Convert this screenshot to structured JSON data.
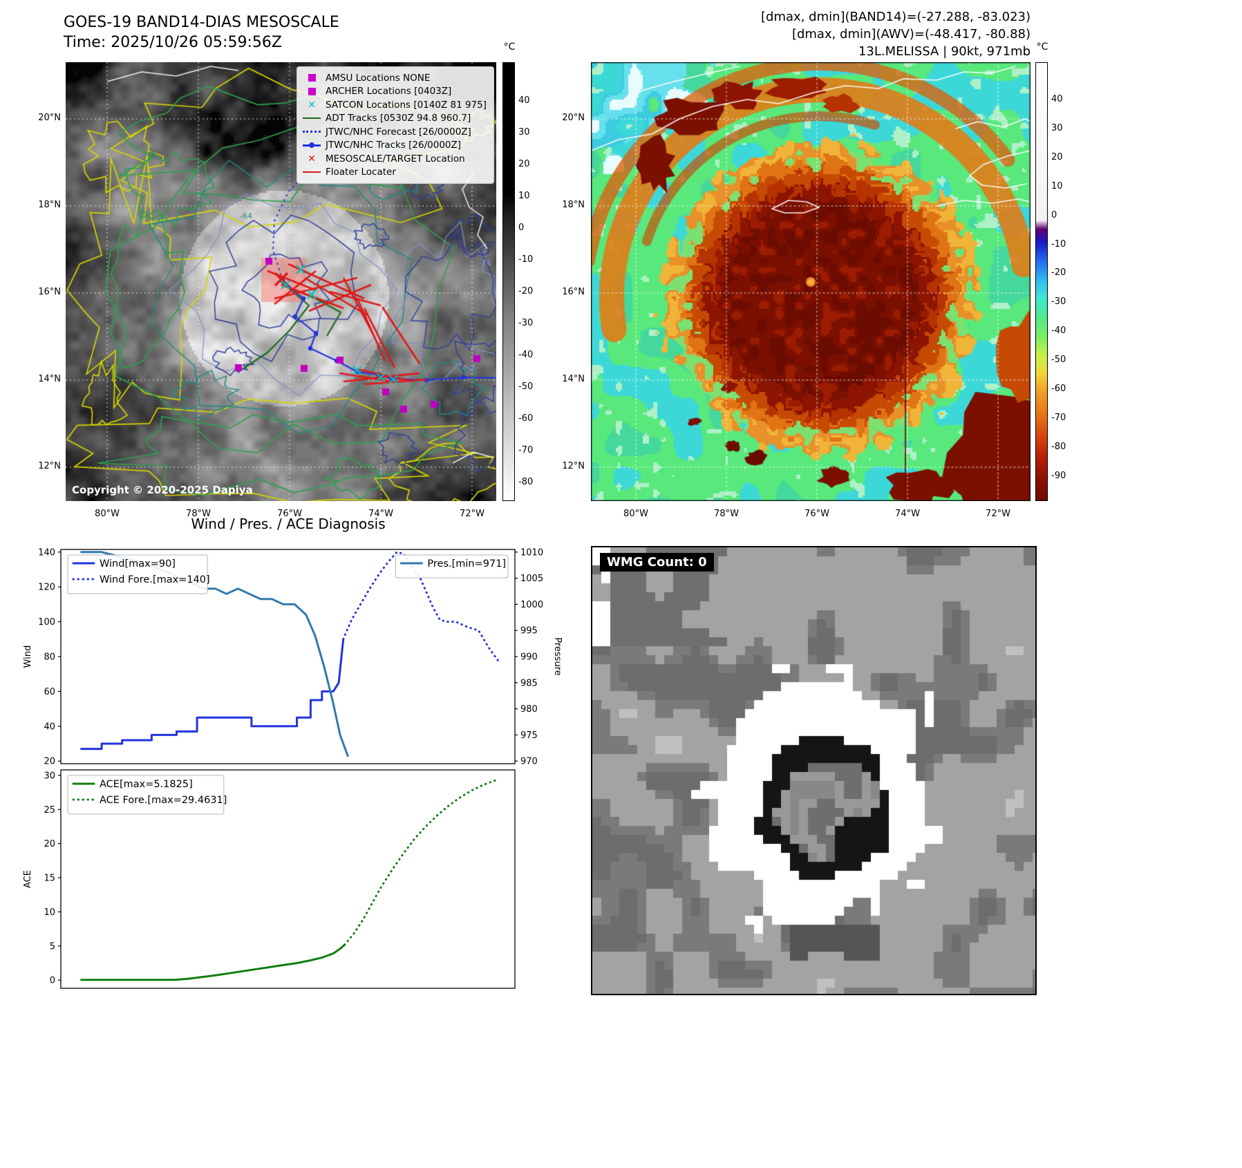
{
  "top_left": {
    "title": "GOES-19 BAND14-DIAS MESOSCALE",
    "subtitle": "Time: 2025/10/26 05:59:56Z",
    "copyright": "Copyright © 2020-2025 Dapiya",
    "legend": [
      {
        "marker": "square-magenta",
        "label": "AMSU Locations NONE"
      },
      {
        "marker": "square-magenta",
        "label": "ARCHER Locations [0403Z]"
      },
      {
        "marker": "x-cyan",
        "label": "SATCON Locations [0140Z 81 975]"
      },
      {
        "marker": "line-green",
        "label": "ADT Tracks [0530Z 94.8 960.7]"
      },
      {
        "marker": "dotted-blue",
        "label": "JTWC/NHC Forecast [26/0000Z]"
      },
      {
        "marker": "line-dot-blue",
        "label": "JTWC/NHC Tracks [26/0000Z]"
      },
      {
        "marker": "x-red",
        "label": "MESOSCALE/TARGET Location"
      },
      {
        "marker": "line-red",
        "label": "Floater Locater"
      }
    ],
    "lat_ticks": [
      "20°N",
      "18°N",
      "16°N",
      "14°N",
      "12°N"
    ],
    "lon_ticks": [
      "80°W",
      "78°W",
      "76°W",
      "74°W",
      "72°W"
    ],
    "colorbar": {
      "unit": "°C",
      "ticks": [
        40,
        30,
        20,
        10,
        0,
        -10,
        -20,
        -30,
        -40,
        -50,
        -60,
        -70,
        -80
      ]
    },
    "contour_labels": [
      "-64",
      "-76"
    ]
  },
  "top_right": {
    "title_lines": [
      "[dmax, dmin](BAND14)=(-27.288, -83.023)",
      "[dmax, dmin](AWV)=(-48.417, -80.88)",
      "13L.MELISSA | 90kt, 971mb"
    ],
    "lat_ticks": [
      "20°N",
      "18°N",
      "16°N",
      "14°N",
      "12°N"
    ],
    "lon_ticks": [
      "80°W",
      "78°W",
      "76°W",
      "74°W",
      "72°W"
    ],
    "colorbar": {
      "unit": "°C",
      "ticks": [
        40,
        30,
        20,
        10,
        0,
        -10,
        -20,
        -30,
        -40,
        -50,
        -60,
        -70,
        -80,
        -90
      ]
    }
  },
  "bottom_left": {
    "title": "Wind / Pres. / ACE Diagnosis"
  },
  "bottom_right": {
    "wmg_label": "WMG Count: 0"
  },
  "colors": {
    "amsu_magenta": "#cc00cc",
    "satcon_cyan": "#00bcbc",
    "adt_green": "#1a6b1a",
    "jtwc_blue": "#2233dd",
    "target_red": "#e01818",
    "wind_blue": "#2233dd",
    "pressure_teal": "#3079ad",
    "ace_green": "#0f7d0f"
  },
  "chart_data": [
    {
      "type": "line",
      "title": "Wind / Pres. / ACE Diagnosis",
      "ylabel": "Wind",
      "y2label": "Pressure",
      "ylim": [
        18.5,
        141.5
      ],
      "y2lim": [
        969.5,
        1010.5
      ],
      "yticks": [
        20,
        40,
        60,
        80,
        100,
        120,
        140
      ],
      "y2ticks": [
        970,
        975,
        980,
        985,
        990,
        995,
        1000,
        1005,
        1010
      ],
      "grid": false,
      "legend_position": [
        "upper left",
        "upper right"
      ],
      "series": [
        {
          "name": "Wind[max=90]",
          "axis": "left",
          "style": "solid",
          "color": "#2233dd",
          "x": [
            0.045,
            0.09,
            0.09,
            0.135,
            0.135,
            0.2,
            0.2,
            0.255,
            0.255,
            0.3,
            0.3,
            0.42,
            0.42,
            0.52,
            0.52,
            0.55,
            0.55,
            0.575,
            0.575,
            0.6,
            0.612,
            0.622
          ],
          "values": [
            27,
            27,
            30,
            30,
            32,
            32,
            35,
            35,
            37,
            37,
            45,
            45,
            40,
            40,
            45,
            45,
            55,
            55,
            60,
            60,
            65,
            90
          ]
        },
        {
          "name": "Wind Fore.[max=140]",
          "axis": "left",
          "style": "dotted",
          "color": "#2233dd",
          "x": [
            0.622,
            0.64,
            0.66,
            0.68,
            0.7,
            0.72,
            0.74,
            0.755,
            0.77,
            0.79,
            0.805,
            0.82,
            0.835,
            0.85,
            0.87,
            0.895,
            0.92,
            0.945,
            0.965
          ],
          "values": [
            90,
            101,
            110,
            119,
            127,
            134,
            140,
            139,
            133,
            126,
            117,
            108,
            101,
            100,
            100,
            97,
            95,
            84,
            77
          ]
        },
        {
          "name": "Pres.[min=971]",
          "axis": "right",
          "style": "solid",
          "color": "#3079ad",
          "x": [
            0.045,
            0.09,
            0.135,
            0.18,
            0.21,
            0.24,
            0.265,
            0.29,
            0.315,
            0.34,
            0.365,
            0.39,
            0.415,
            0.44,
            0.465,
            0.49,
            0.515,
            0.54,
            0.56,
            0.58,
            0.6,
            0.615,
            0.632
          ],
          "values": [
            1010,
            1010,
            1009,
            1008,
            1007,
            1006,
            1005,
            1004,
            1003,
            1003,
            1002,
            1003,
            1002,
            1001,
            1001,
            1000,
            1000,
            998,
            994,
            988,
            981,
            975,
            971
          ]
        }
      ]
    },
    {
      "type": "line",
      "title": "",
      "ylabel": "ACE",
      "ylim": [
        -1.2,
        30.8
      ],
      "yticks": [
        0,
        5,
        10,
        15,
        20,
        25,
        30
      ],
      "grid": false,
      "legend_position": [
        "upper left"
      ],
      "series": [
        {
          "name": "ACE[max=5.1825]",
          "axis": "left",
          "style": "solid",
          "color": "#0f7d0f",
          "x": [
            0.045,
            0.1,
            0.15,
            0.2,
            0.25,
            0.28,
            0.31,
            0.34,
            0.37,
            0.4,
            0.43,
            0.46,
            0.49,
            0.52,
            0.55,
            0.575,
            0.6,
            0.615,
            0.625
          ],
          "values": [
            0.05,
            0.05,
            0.05,
            0.05,
            0.05,
            0.2,
            0.45,
            0.7,
            1.0,
            1.3,
            1.6,
            1.9,
            2.2,
            2.5,
            2.9,
            3.3,
            3.9,
            4.6,
            5.18
          ]
        },
        {
          "name": "ACE Fore.[max=29.4631]",
          "axis": "left",
          "style": "dotted",
          "color": "#0f7d0f",
          "x": [
            0.625,
            0.645,
            0.665,
            0.685,
            0.705,
            0.73,
            0.755,
            0.78,
            0.805,
            0.83,
            0.855,
            0.88,
            0.905,
            0.93,
            0.95,
            0.965
          ],
          "values": [
            5.18,
            6.8,
            8.8,
            11.2,
            13.6,
            16.2,
            18.6,
            20.8,
            22.6,
            24.2,
            25.6,
            26.8,
            27.8,
            28.6,
            29.1,
            29.46
          ]
        }
      ]
    }
  ]
}
